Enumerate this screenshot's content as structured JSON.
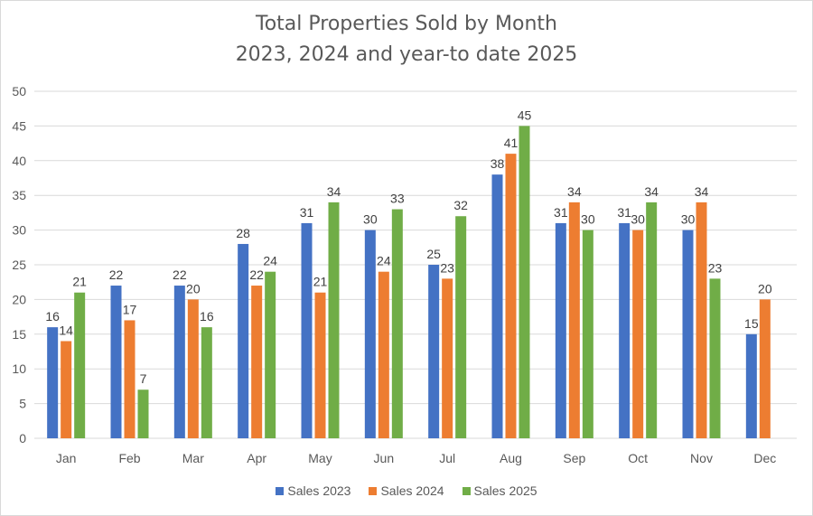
{
  "chart_data": {
    "type": "bar",
    "title": "Total Properties Sold by Month",
    "subtitle": "2023, 2024 and year-to date 2025",
    "xlabel": "",
    "ylabel": "",
    "ylim": [
      0,
      50
    ],
    "yticks": [
      0,
      5,
      10,
      15,
      20,
      25,
      30,
      35,
      40,
      45,
      50
    ],
    "grid": true,
    "legend_position": "bottom",
    "categories": [
      "Jan",
      "Feb",
      "Mar",
      "Apr",
      "May",
      "Jun",
      "Jul",
      "Aug",
      "Sep",
      "Oct",
      "Nov",
      "Dec"
    ],
    "series": [
      {
        "name": "Sales 2023",
        "color": "#4472C4",
        "values": [
          16,
          22,
          22,
          28,
          31,
          30,
          25,
          38,
          31,
          31,
          30,
          15
        ]
      },
      {
        "name": "Sales 2024",
        "color": "#ED7D31",
        "values": [
          14,
          17,
          20,
          22,
          21,
          24,
          23,
          41,
          34,
          30,
          34,
          20
        ]
      },
      {
        "name": "Sales 2025",
        "color": "#70AD47",
        "values": [
          21,
          7,
          16,
          24,
          34,
          33,
          32,
          45,
          30,
          34,
          23,
          null
        ]
      }
    ],
    "data_labels": true
  }
}
